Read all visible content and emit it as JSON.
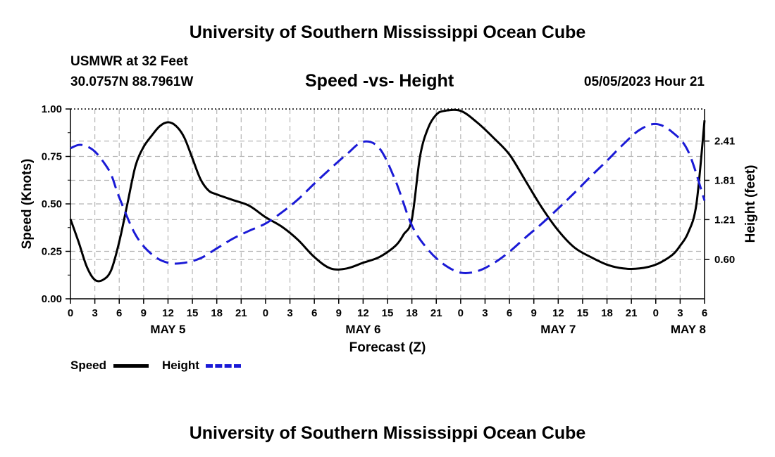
{
  "header": {
    "title": "University of Southern Mississippi Ocean Cube",
    "station": "USMWR at 32 Feet",
    "coords": "30.0757N  88.7961W",
    "datetime": "05/05/2023 Hour 21"
  },
  "footer": {
    "title": "University of Southern Mississippi Ocean Cube"
  },
  "chart_data": {
    "type": "line",
    "title": "Speed -vs- Height",
    "xlabel": "Forecast (Z)",
    "ylabel": "Speed (Knots)",
    "y2label": "Height (feet)",
    "x_unit": "hours since 2023-05-05 00Z",
    "xlim": [
      0,
      78
    ],
    "ylim": [
      0,
      1
    ],
    "y2lim": [
      0.0,
      2.9
    ],
    "grid": true,
    "x_ticks": [
      0,
      3,
      6,
      9,
      12,
      15,
      18,
      21,
      24,
      27,
      30,
      33,
      36,
      39,
      42,
      45,
      48,
      51,
      54,
      57,
      60,
      63,
      66,
      69,
      72,
      75,
      78
    ],
    "x_tick_labels": [
      "0",
      "3",
      "6",
      "9",
      "12",
      "15",
      "18",
      "21",
      "0",
      "3",
      "6",
      "9",
      "12",
      "15",
      "18",
      "21",
      "0",
      "3",
      "6",
      "9",
      "12",
      "15",
      "18",
      "21",
      "0",
      "3",
      "6"
    ],
    "y_ticks": [
      0,
      0.25,
      0.5,
      0.75,
      1.0
    ],
    "y_tick_labels": [
      "0.00",
      "0.25",
      "0.50",
      "0.75",
      "1.00"
    ],
    "y2_ticks": [
      0.6,
      1.21,
      1.81,
      2.41
    ],
    "y2_tick_labels": [
      "0.60",
      "1.21",
      "1.81",
      "2.41"
    ],
    "day_labels": [
      {
        "x": 12,
        "label": "MAY 5"
      },
      {
        "x": 36,
        "label": "MAY 6"
      },
      {
        "x": 60,
        "label": "MAY 7"
      },
      {
        "x": 76,
        "label": "MAY 8"
      }
    ],
    "series": [
      {
        "name": "Speed",
        "axis": "left",
        "color": "#000000",
        "dash": "solid",
        "x": [
          0,
          1,
          2,
          3,
          4,
          5,
          6,
          7,
          8,
          9,
          10,
          11,
          12,
          13,
          14,
          15,
          16,
          17,
          18,
          20,
          22,
          24,
          26,
          28,
          30,
          32,
          34,
          36,
          38,
          40,
          41,
          42,
          43,
          44,
          45,
          46,
          48,
          50,
          52,
          54,
          56,
          58,
          60,
          62,
          64,
          66,
          68,
          70,
          72,
          74,
          75,
          76,
          77,
          78
        ],
        "values": [
          0.42,
          0.3,
          0.17,
          0.1,
          0.1,
          0.15,
          0.3,
          0.5,
          0.7,
          0.8,
          0.86,
          0.91,
          0.93,
          0.91,
          0.85,
          0.74,
          0.63,
          0.57,
          0.55,
          0.52,
          0.49,
          0.43,
          0.38,
          0.31,
          0.22,
          0.16,
          0.16,
          0.19,
          0.22,
          0.28,
          0.34,
          0.42,
          0.75,
          0.9,
          0.97,
          0.99,
          0.99,
          0.93,
          0.85,
          0.76,
          0.62,
          0.48,
          0.36,
          0.27,
          0.22,
          0.18,
          0.16,
          0.16,
          0.18,
          0.23,
          0.28,
          0.35,
          0.5,
          0.94
        ]
      },
      {
        "name": "Height",
        "axis": "right",
        "color": "#1a1ad6",
        "dash": "dashed",
        "x": [
          0,
          1,
          2,
          3,
          4,
          5,
          6,
          8,
          10,
          12,
          14,
          16,
          18,
          20,
          22,
          24,
          26,
          28,
          30,
          32,
          34,
          36,
          38,
          40,
          42,
          44,
          46,
          48,
          50,
          52,
          54,
          56,
          58,
          60,
          62,
          64,
          66,
          68,
          70,
          72,
          74,
          76,
          78
        ],
        "values": [
          2.3,
          2.35,
          2.33,
          2.25,
          2.1,
          1.9,
          1.55,
          0.98,
          0.68,
          0.55,
          0.55,
          0.62,
          0.77,
          0.92,
          1.04,
          1.15,
          1.32,
          1.52,
          1.76,
          1.99,
          2.21,
          2.4,
          2.3,
          1.8,
          1.12,
          0.75,
          0.52,
          0.4,
          0.42,
          0.54,
          0.72,
          0.94,
          1.15,
          1.38,
          1.62,
          1.87,
          2.11,
          2.36,
          2.58,
          2.67,
          2.55,
          2.25,
          1.5
        ]
      }
    ],
    "legend": [
      {
        "label": "Speed",
        "color": "#000000"
      },
      {
        "label": "Height",
        "color": "#1a1ad6"
      }
    ]
  }
}
